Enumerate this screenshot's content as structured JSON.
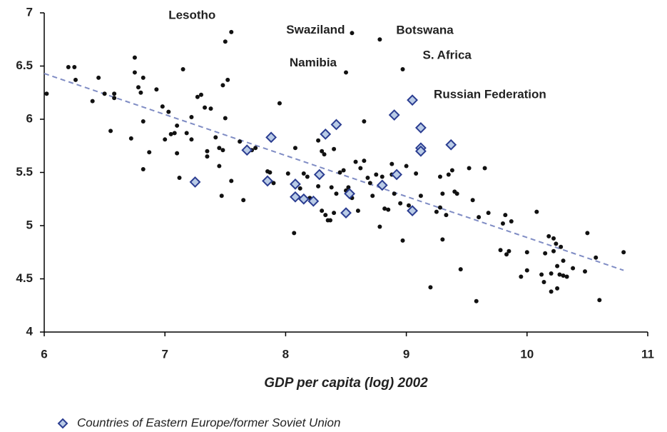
{
  "chart_data": {
    "type": "scatter",
    "xlabel": "GDP per capita (log) 2002",
    "xlim": [
      6,
      11
    ],
    "xticks": [
      6,
      7,
      8,
      9,
      10,
      11
    ],
    "ylim": [
      4,
      7
    ],
    "yticks": [
      4,
      4.5,
      5,
      5.5,
      6,
      6.5,
      7
    ],
    "grid": false,
    "series": [
      {
        "color": "#111111",
        "marker": "circle",
        "x": [
          6.02,
          6.2,
          6.25,
          6.26,
          6.4,
          6.45,
          6.5,
          6.55,
          6.58,
          6.58,
          6.72,
          6.75,
          6.75,
          6.78,
          6.8,
          6.82,
          6.82,
          6.82,
          6.87,
          6.93,
          6.98,
          7.0,
          7.03,
          7.05,
          7.08,
          7.1,
          7.1,
          7.12,
          7.15,
          7.18,
          7.22,
          7.22,
          7.27,
          7.3,
          7.33,
          7.35,
          7.35,
          7.38,
          7.42,
          7.45,
          7.45,
          7.48,
          7.48,
          7.5,
          7.5,
          7.52,
          7.55,
          7.47,
          7.62,
          7.65,
          7.72,
          7.75,
          7.85,
          7.87,
          7.9,
          7.95,
          8.02,
          8.07,
          8.08,
          8.12,
          8.15,
          8.18,
          8.2,
          8.27,
          8.27,
          8.3,
          8.3,
          8.32,
          8.33,
          8.35,
          8.37,
          8.38,
          8.4,
          8.4,
          8.42,
          8.45,
          8.48,
          8.5,
          8.52,
          8.55,
          8.58,
          8.6,
          8.62,
          8.65,
          8.65,
          8.68,
          8.7,
          8.72,
          8.75,
          8.78,
          8.8,
          8.82,
          8.85,
          8.88,
          8.88,
          8.9,
          8.95,
          8.97,
          9.0,
          9.02,
          9.08,
          9.12,
          9.25,
          9.28,
          9.28,
          9.3,
          9.3,
          9.33,
          9.35,
          9.38,
          9.4,
          9.42,
          9.45,
          9.2,
          9.52,
          9.55,
          9.58,
          9.6,
          9.65,
          9.68,
          9.78,
          9.82,
          9.8,
          9.83,
          9.85,
          9.87,
          9.95,
          10.0,
          10.0,
          10.08,
          10.12,
          10.14,
          10.15,
          10.18,
          10.2,
          10.2,
          10.22,
          10.22,
          10.24,
          10.25,
          10.25,
          10.27,
          10.28,
          10.3,
          10.3,
          10.33,
          10.38,
          10.48,
          10.5,
          10.57,
          10.6,
          10.8,
          7.55,
          8.55,
          8.78,
          8.97,
          8.5
        ],
        "y": [
          6.24,
          6.49,
          6.49,
          6.37,
          6.17,
          6.39,
          6.24,
          5.89,
          6.24,
          6.2,
          5.82,
          6.58,
          6.44,
          6.3,
          6.25,
          6.39,
          5.98,
          5.53,
          5.69,
          6.28,
          6.12,
          5.81,
          6.07,
          5.86,
          5.87,
          5.94,
          5.68,
          5.45,
          6.47,
          5.87,
          6.02,
          5.81,
          6.21,
          6.23,
          6.11,
          5.65,
          5.7,
          6.1,
          5.83,
          5.56,
          5.73,
          5.71,
          6.32,
          6.73,
          6.01,
          6.37,
          5.42,
          5.28,
          5.79,
          5.24,
          5.71,
          5.73,
          5.51,
          5.5,
          5.4,
          6.15,
          5.49,
          4.93,
          5.73,
          5.35,
          5.49,
          5.46,
          5.26,
          5.37,
          5.8,
          5.14,
          5.7,
          5.67,
          5.1,
          5.05,
          5.05,
          5.36,
          5.72,
          5.12,
          5.3,
          5.5,
          5.52,
          5.33,
          5.36,
          5.26,
          5.6,
          5.14,
          5.54,
          5.61,
          5.98,
          5.45,
          5.4,
          5.28,
          5.48,
          4.99,
          5.46,
          5.16,
          5.15,
          5.48,
          5.58,
          5.3,
          5.21,
          4.86,
          5.56,
          5.19,
          5.49,
          5.28,
          5.13,
          5.46,
          5.17,
          5.3,
          4.87,
          5.1,
          5.48,
          5.52,
          5.32,
          5.3,
          4.59,
          4.42,
          5.54,
          5.24,
          4.29,
          5.08,
          5.54,
          5.12,
          4.77,
          5.1,
          5.02,
          4.73,
          4.76,
          5.04,
          4.52,
          4.58,
          4.75,
          5.13,
          4.54,
          4.47,
          4.74,
          4.9,
          4.55,
          4.38,
          4.88,
          4.76,
          4.83,
          4.62,
          4.41,
          4.54,
          4.8,
          4.67,
          4.53,
          4.52,
          4.6,
          4.57,
          4.93,
          4.7,
          4.3,
          4.75,
          6.82,
          6.81,
          6.75,
          6.47,
          6.44
        ]
      },
      {
        "name": "Countries of Eastern Europe/former Soviet Union",
        "color": "#b9cbe6",
        "edgecolor": "#2b3d91",
        "marker": "diamond",
        "x": [
          7.25,
          7.68,
          7.88,
          7.85,
          8.08,
          8.08,
          8.15,
          8.23,
          8.28,
          8.33,
          8.42,
          8.5,
          8.53,
          8.8,
          8.9,
          8.92,
          9.05,
          9.05,
          9.12,
          9.12,
          9.12,
          9.37
        ],
        "y": [
          5.41,
          5.71,
          5.83,
          5.42,
          5.39,
          5.27,
          5.25,
          5.23,
          5.48,
          5.86,
          5.95,
          5.12,
          5.3,
          5.38,
          6.04,
          5.48,
          6.18,
          5.14,
          5.92,
          5.73,
          5.7,
          5.76
        ]
      }
    ],
    "trendline": {
      "color": "#7f8cc4",
      "x": [
        6,
        10.8
      ],
      "y": [
        6.43,
        4.58
      ]
    },
    "annotations": [
      {
        "text": "Lesotho",
        "x": 7.55,
        "y": 6.82
      },
      {
        "text": "Swaziland",
        "x": 8.55,
        "y": 6.81
      },
      {
        "text": "Botswana",
        "x": 8.78,
        "y": 6.75
      },
      {
        "text": "S. Africa",
        "x": 8.97,
        "y": 6.47
      },
      {
        "text": "Namibia",
        "x": 8.5,
        "y": 6.44
      },
      {
        "text": "Russian Federation",
        "x": 9.05,
        "y": 6.18
      }
    ]
  }
}
